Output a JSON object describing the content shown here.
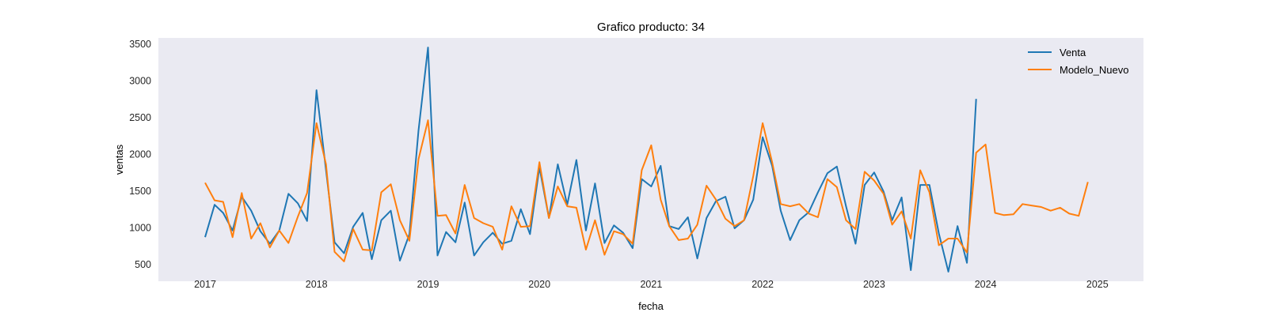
{
  "chart_data": {
    "type": "line",
    "title": "Grafico producto: 34",
    "xlabel": "fecha",
    "ylabel": "ventas",
    "x_ticks": [
      "2017",
      "2018",
      "2019",
      "2020",
      "2021",
      "2022",
      "2023",
      "2024",
      "2025"
    ],
    "y_ticks": [
      "500",
      "1000",
      "1500",
      "2000",
      "2500",
      "3000",
      "3500"
    ],
    "xlim": [
      "2016-08-01",
      "2025-06-01"
    ],
    "ylim": [
      270,
      3580
    ],
    "grid": false,
    "legend_position": "top-right",
    "series": [
      {
        "name": "Venta",
        "color": "#1f77b4",
        "start": "2017-01",
        "values": [
          870,
          1310,
          1200,
          960,
          1420,
          1230,
          950,
          780,
          960,
          1460,
          1330,
          1090,
          2870,
          1780,
          800,
          650,
          1010,
          1200,
          570,
          1100,
          1230,
          550,
          910,
          2320,
          3450,
          620,
          940,
          800,
          1340,
          620,
          800,
          930,
          780,
          820,
          1250,
          910,
          1820,
          1130,
          1860,
          1310,
          1920,
          960,
          1600,
          790,
          1030,
          930,
          720,
          1660,
          1560,
          1840,
          1020,
          980,
          1140,
          580,
          1130,
          1360,
          1420,
          990,
          1100,
          1380,
          2230,
          1840,
          1230,
          830,
          1100,
          1210,
          1480,
          1740,
          1830,
          1290,
          780,
          1580,
          1750,
          1490,
          1100,
          1410,
          420,
          1580,
          1580,
          920,
          400,
          1020,
          520,
          2750
        ]
      },
      {
        "name": "Modelo_Nuevo",
        "color": "#ff7f0e",
        "start": "2017-01",
        "values": [
          1610,
          1370,
          1350,
          870,
          1470,
          850,
          1060,
          730,
          960,
          790,
          1150,
          1470,
          2420,
          1860,
          670,
          540,
          980,
          700,
          690,
          1480,
          1590,
          1100,
          820,
          1930,
          2460,
          1160,
          1170,
          920,
          1580,
          1130,
          1060,
          1010,
          700,
          1290,
          1010,
          1020,
          1890,
          1130,
          1560,
          1290,
          1270,
          700,
          1100,
          630,
          950,
          910,
          780,
          1780,
          2120,
          1380,
          1020,
          830,
          850,
          1040,
          1570,
          1380,
          1120,
          1020,
          1100,
          1700,
          2420,
          1890,
          1320,
          1290,
          1320,
          1190,
          1140,
          1660,
          1550,
          1100,
          980,
          1760,
          1640,
          1460,
          1040,
          1220,
          850,
          1780,
          1480,
          760,
          850,
          850,
          660,
          2020,
          2130,
          1200,
          1170,
          1180,
          1320,
          1300,
          1280,
          1230,
          1270,
          1190,
          1160,
          1620
        ]
      }
    ]
  }
}
